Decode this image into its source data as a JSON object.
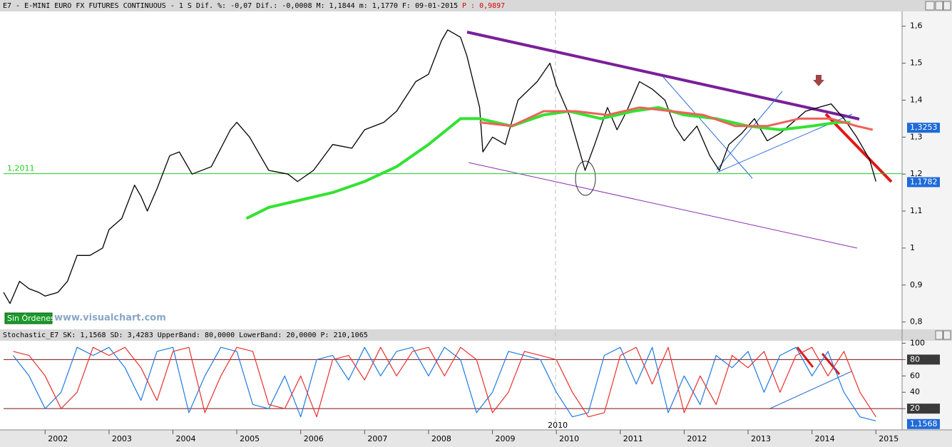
{
  "chart_data": [
    {
      "type": "line",
      "title": "E7 - E-MINI EURO FX FUTURES CONTINUOUS -  1 S Dif. %: -0,07 Dif.: -0,0008 M: 1,1844 m: 1,1770 F: 09-01-2015",
      "subtitle": "P : 0,9897",
      "xlim": [
        2001.35,
        2015.41
      ],
      "ylim": [
        0.78,
        1.64
      ],
      "yticks": [
        {
          "value": 0.8,
          "label": "0,8"
        },
        {
          "value": 0.9,
          "label": "0,9"
        },
        1,
        {
          "value": 1.1,
          "label": "1,1"
        },
        {
          "value": 1.2,
          "label": "1,2"
        },
        {
          "value": 1.3,
          "label": "1,3"
        },
        {
          "value": 1.4,
          "label": "1,4"
        },
        {
          "value": 1.5,
          "label": "1,5"
        },
        {
          "value": 1.6,
          "label": "1,6"
        }
      ],
      "series": [
        {
          "color": "#000000",
          "x": [
            2001.35,
            2001.45,
            2001.6,
            2001.75,
            2001.9,
            2002.0,
            2002.2,
            2002.35,
            2002.5,
            2002.7,
            2002.9,
            2003.0,
            2003.2,
            2003.4,
            2003.5,
            2003.6,
            2003.75,
            2003.95,
            2004.1,
            2004.3,
            2004.6,
            2004.9,
            2005.0,
            2005.2,
            2005.4,
            2005.5,
            2005.8,
            2005.95,
            2006.2,
            2006.5,
            2006.8,
            2007.0,
            2007.3,
            2007.5,
            2007.8,
            2008.0,
            2008.2,
            2008.3,
            2008.5,
            2008.6,
            2008.8,
            2008.85,
            2009.0,
            2009.2,
            2009.4,
            2009.7,
            2009.9,
            2010.0,
            2010.2,
            2010.3,
            2010.45,
            2010.6,
            2010.8,
            2010.95,
            2011.1,
            2011.3,
            2011.5,
            2011.7,
            2011.85,
            2012.0,
            2012.2,
            2012.4,
            2012.55,
            2012.7,
            2012.9,
            2013.1,
            2013.3,
            2013.5,
            2013.7,
            2013.9,
            2014.1,
            2014.3,
            2014.5,
            2014.7,
            2014.9,
            2015.0
          ],
          "values": [
            0.88,
            0.85,
            0.91,
            0.89,
            0.88,
            0.87,
            0.88,
            0.91,
            0.98,
            0.98,
            1.0,
            1.05,
            1.08,
            1.17,
            1.14,
            1.1,
            1.16,
            1.25,
            1.26,
            1.2,
            1.22,
            1.32,
            1.34,
            1.3,
            1.24,
            1.21,
            1.2,
            1.18,
            1.21,
            1.28,
            1.27,
            1.32,
            1.34,
            1.37,
            1.45,
            1.47,
            1.56,
            1.59,
            1.57,
            1.52,
            1.38,
            1.26,
            1.3,
            1.28,
            1.4,
            1.45,
            1.5,
            1.44,
            1.36,
            1.3,
            1.21,
            1.28,
            1.38,
            1.32,
            1.37,
            1.45,
            1.43,
            1.4,
            1.33,
            1.29,
            1.33,
            1.25,
            1.21,
            1.28,
            1.31,
            1.35,
            1.29,
            1.31,
            1.34,
            1.37,
            1.38,
            1.39,
            1.35,
            1.3,
            1.24,
            1.18
          ],
          "width": 1.3
        },
        {
          "color": "#33e233",
          "x": [
            2005.15,
            2005.5,
            2006,
            2006.5,
            2007,
            2007.5,
            2008,
            2008.5,
            2008.8,
            2009.3,
            2009.8,
            2010.2,
            2010.7,
            2011.2,
            2011.6,
            2012,
            2012.5,
            2013,
            2013.5,
            2014,
            2014.4,
            2014.6
          ],
          "values": [
            1.08,
            1.11,
            1.13,
            1.15,
            1.18,
            1.22,
            1.28,
            1.35,
            1.35,
            1.33,
            1.36,
            1.37,
            1.35,
            1.37,
            1.38,
            1.36,
            1.35,
            1.33,
            1.32,
            1.33,
            1.34,
            1.34
          ],
          "width": 4
        },
        {
          "color": "#f0605a",
          "x": [
            2008.8,
            2009.3,
            2009.8,
            2010.3,
            2010.8,
            2011.3,
            2011.8,
            2012.3,
            2012.8,
            2013.3,
            2013.8,
            2014.3,
            2014.7,
            2014.95
          ],
          "values": [
            1.34,
            1.33,
            1.37,
            1.37,
            1.36,
            1.38,
            1.37,
            1.36,
            1.33,
            1.33,
            1.35,
            1.35,
            1.33,
            1.32
          ],
          "width": 3
        }
      ],
      "hline": {
        "value": 1.2011,
        "label": "1,2011",
        "color": "#22cc22"
      },
      "tags": [
        {
          "value": 1.3253,
          "label": "1,3253"
        },
        {
          "value": 1.1782,
          "label": "1,1782"
        }
      ],
      "button": "Sin Órdenes",
      "watermark": "www.visualchart.com"
    },
    {
      "type": "line",
      "title": "Stochastic_E7 SK: 1,1568 SD: 3,4283 UpperBand: 80,0000 LowerBand: 20,0000 P: 210,1065",
      "xlim": [
        2001.35,
        2015.41
      ],
      "ylim": [
        -6,
        103
      ],
      "yticks": [
        20,
        40,
        60,
        80,
        100
      ],
      "xticks": [
        2002,
        2003,
        2004,
        2005,
        2006,
        2007,
        2008,
        2009,
        2010,
        2011,
        2012,
        2013,
        2014,
        2015
      ],
      "x": [
        2001.5,
        2001.75,
        2002,
        2002.25,
        2002.5,
        2002.75,
        2003,
        2003.25,
        2003.5,
        2003.75,
        2004,
        2004.25,
        2004.5,
        2004.75,
        2005,
        2005.25,
        2005.5,
        2005.75,
        2006,
        2006.25,
        2006.5,
        2006.75,
        2007,
        2007.25,
        2007.5,
        2007.75,
        2008,
        2008.25,
        2008.5,
        2008.75,
        2009,
        2009.25,
        2009.5,
        2009.75,
        2010,
        2010.25,
        2010.5,
        2010.75,
        2011,
        2011.25,
        2011.5,
        2011.75,
        2012,
        2012.25,
        2012.5,
        2012.75,
        2013,
        2013.25,
        2013.5,
        2013.75,
        2014,
        2014.25,
        2014.5,
        2014.75,
        2015
      ],
      "series": [
        {
          "color": "#1e7be0",
          "values": [
            85,
            60,
            20,
            40,
            95,
            85,
            95,
            70,
            30,
            90,
            95,
            15,
            60,
            95,
            90,
            25,
            20,
            60,
            10,
            80,
            85,
            55,
            95,
            60,
            90,
            95,
            60,
            95,
            80,
            15,
            40,
            90,
            85,
            80,
            40,
            10,
            15,
            85,
            95,
            50,
            95,
            15,
            60,
            25,
            85,
            70,
            90,
            40,
            85,
            95,
            60,
            90,
            40,
            10,
            5
          ]
        },
        {
          "color": "#e83030",
          "values": [
            90,
            85,
            60,
            20,
            40,
            95,
            85,
            95,
            70,
            30,
            90,
            95,
            15,
            60,
            95,
            90,
            25,
            20,
            60,
            10,
            80,
            85,
            55,
            95,
            60,
            90,
            95,
            60,
            95,
            80,
            15,
            40,
            90,
            85,
            80,
            40,
            10,
            15,
            85,
            95,
            50,
            95,
            15,
            60,
            25,
            85,
            70,
            90,
            40,
            85,
            95,
            60,
            90,
            40,
            10
          ]
        }
      ],
      "bands": [
        80,
        20
      ],
      "tags": [
        80,
        20,
        {
          "value": 1.1568,
          "label": "1,1568"
        }
      ],
      "annotation": 2010
    }
  ]
}
